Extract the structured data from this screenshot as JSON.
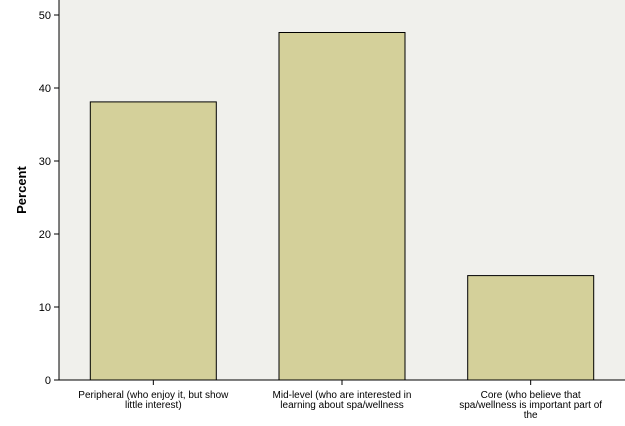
{
  "chart_data": {
    "type": "bar",
    "categories": [
      [
        "Peripheral (who enjoy it, but show",
        "little interest)"
      ],
      [
        "Mid-level (who are interested in",
        "learning about spa/wellness"
      ],
      [
        "Core (who believe that",
        "spa/wellness is important part of",
        "the"
      ]
    ],
    "values": [
      38.1,
      47.6,
      14.3
    ],
    "ylabel": "Percent",
    "xlabel": "",
    "ylim": [
      0,
      50
    ],
    "yticks": [
      0,
      10,
      20,
      30,
      40,
      50
    ],
    "grid": false,
    "colors": {
      "plot_background": "#f0f0ec",
      "bar_fill": "#d4d09a",
      "bar_stroke": "#000000"
    }
  }
}
